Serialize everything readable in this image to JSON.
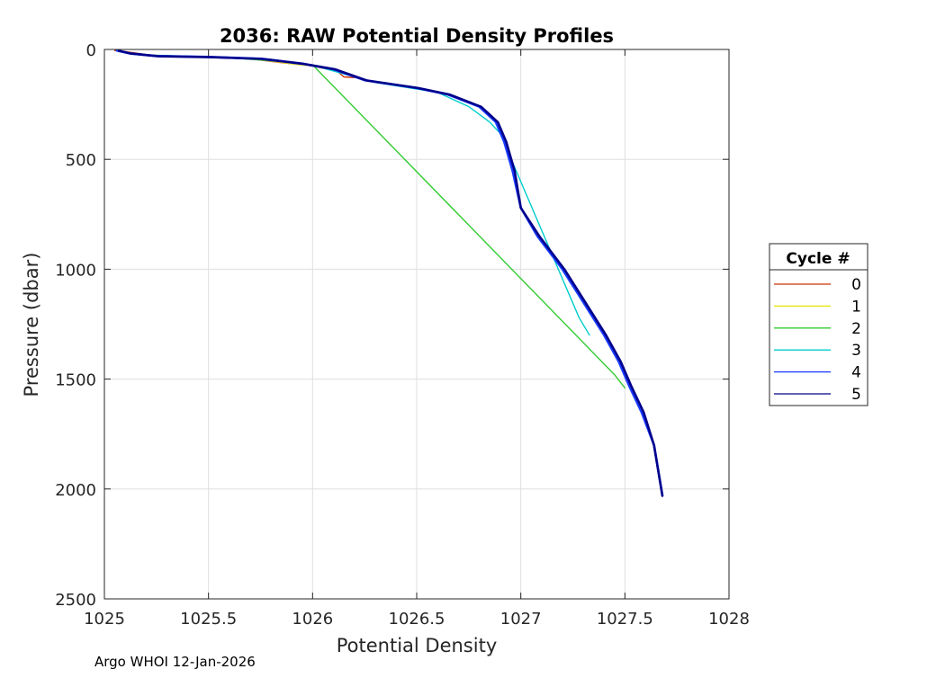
{
  "chart_data": {
    "type": "line",
    "title": "2036: RAW Potential Density Profiles",
    "xlabel": "Potential Density",
    "ylabel": "Pressure (dbar)",
    "xlim": [
      1025,
      1028
    ],
    "ylim": [
      0,
      2500
    ],
    "y_reversed": true,
    "xticks": [
      1025,
      1025.5,
      1026,
      1026.5,
      1027,
      1027.5,
      1028
    ],
    "xtick_labels": [
      "1025",
      "1025.5",
      "1026",
      "1026.5",
      "1027",
      "1027.5",
      "1028"
    ],
    "yticks": [
      0,
      500,
      1000,
      1500,
      2000,
      2500
    ],
    "ytick_labels": [
      "0",
      "500",
      "1000",
      "1500",
      "2000",
      "2500"
    ],
    "grid": true,
    "legend": {
      "title": "Cycle #",
      "position": "right-outside",
      "entries": [
        "0",
        "1",
        "2",
        "3",
        "4",
        "5"
      ]
    },
    "series": [
      {
        "name": "0",
        "color": "#cc3300",
        "points": [
          [
            1025.05,
            5
          ],
          [
            1025.1,
            10
          ],
          [
            1025.18,
            20
          ],
          [
            1025.22,
            30
          ],
          [
            1025.45,
            33
          ],
          [
            1025.68,
            40
          ],
          [
            1025.85,
            60
          ],
          [
            1026.0,
            75
          ],
          [
            1026.12,
            100
          ],
          [
            1026.15,
            125
          ],
          [
            1026.2,
            128
          ]
        ]
      },
      {
        "name": "1",
        "color": "#e6e600",
        "points": [
          [
            1025.06,
            5
          ],
          [
            1025.12,
            15
          ],
          [
            1025.2,
            25
          ],
          [
            1025.4,
            32
          ],
          [
            1025.7,
            40
          ],
          [
            1025.9,
            65
          ],
          [
            1026.05,
            80
          ]
        ]
      },
      {
        "name": "2",
        "color": "#33cc33",
        "points": [
          [
            1025.07,
            8
          ],
          [
            1025.15,
            22
          ],
          [
            1025.3,
            32
          ],
          [
            1025.6,
            38
          ],
          [
            1025.85,
            55
          ],
          [
            1026.0,
            70
          ],
          [
            1027.45,
            1480
          ],
          [
            1027.5,
            1540
          ]
        ]
      },
      {
        "name": "3",
        "color": "#00cccc",
        "points": [
          [
            1025.08,
            10
          ],
          [
            1025.18,
            24
          ],
          [
            1025.5,
            34
          ],
          [
            1025.8,
            45
          ],
          [
            1026.0,
            72
          ],
          [
            1026.3,
            150
          ],
          [
            1026.6,
            195
          ],
          [
            1026.75,
            260
          ],
          [
            1026.85,
            330
          ],
          [
            1026.9,
            380
          ],
          [
            1027.28,
            1220
          ],
          [
            1027.33,
            1300
          ]
        ]
      },
      {
        "name": "4",
        "color": "#1a3cff",
        "points": [
          [
            1025.06,
            5
          ],
          [
            1025.12,
            18
          ],
          [
            1025.25,
            30
          ],
          [
            1025.5,
            34
          ],
          [
            1025.75,
            42
          ],
          [
            1025.95,
            65
          ],
          [
            1026.1,
            90
          ],
          [
            1026.25,
            140
          ],
          [
            1026.5,
            175
          ],
          [
            1026.65,
            205
          ],
          [
            1026.8,
            260
          ],
          [
            1026.88,
            330
          ],
          [
            1026.92,
            420
          ],
          [
            1026.96,
            550
          ],
          [
            1027.0,
            720
          ],
          [
            1027.08,
            850
          ],
          [
            1027.2,
            1000
          ],
          [
            1027.3,
            1150
          ],
          [
            1027.4,
            1300
          ],
          [
            1027.47,
            1420
          ],
          [
            1027.52,
            1530
          ],
          [
            1027.58,
            1650
          ],
          [
            1027.64,
            1800
          ],
          [
            1027.68,
            2030
          ]
        ]
      },
      {
        "name": "5",
        "color": "#00008b",
        "points": [
          [
            1025.07,
            6
          ],
          [
            1025.13,
            19
          ],
          [
            1025.26,
            31
          ],
          [
            1025.51,
            35
          ],
          [
            1025.76,
            43
          ],
          [
            1025.96,
            66
          ],
          [
            1026.11,
            91
          ],
          [
            1026.26,
            141
          ],
          [
            1026.51,
            176
          ],
          [
            1026.66,
            206
          ],
          [
            1026.81,
            261
          ],
          [
            1026.89,
            331
          ],
          [
            1026.93,
            421
          ],
          [
            1026.97,
            551
          ],
          [
            1027.0,
            721
          ],
          [
            1027.09,
            851
          ],
          [
            1027.21,
            1001
          ],
          [
            1027.31,
            1151
          ],
          [
            1027.41,
            1301
          ],
          [
            1027.48,
            1421
          ],
          [
            1027.53,
            1531
          ],
          [
            1027.59,
            1651
          ],
          [
            1027.64,
            1801
          ],
          [
            1027.68,
            2031
          ]
        ]
      }
    ]
  },
  "footer": "Argo WHOI 12-Jan-2026"
}
